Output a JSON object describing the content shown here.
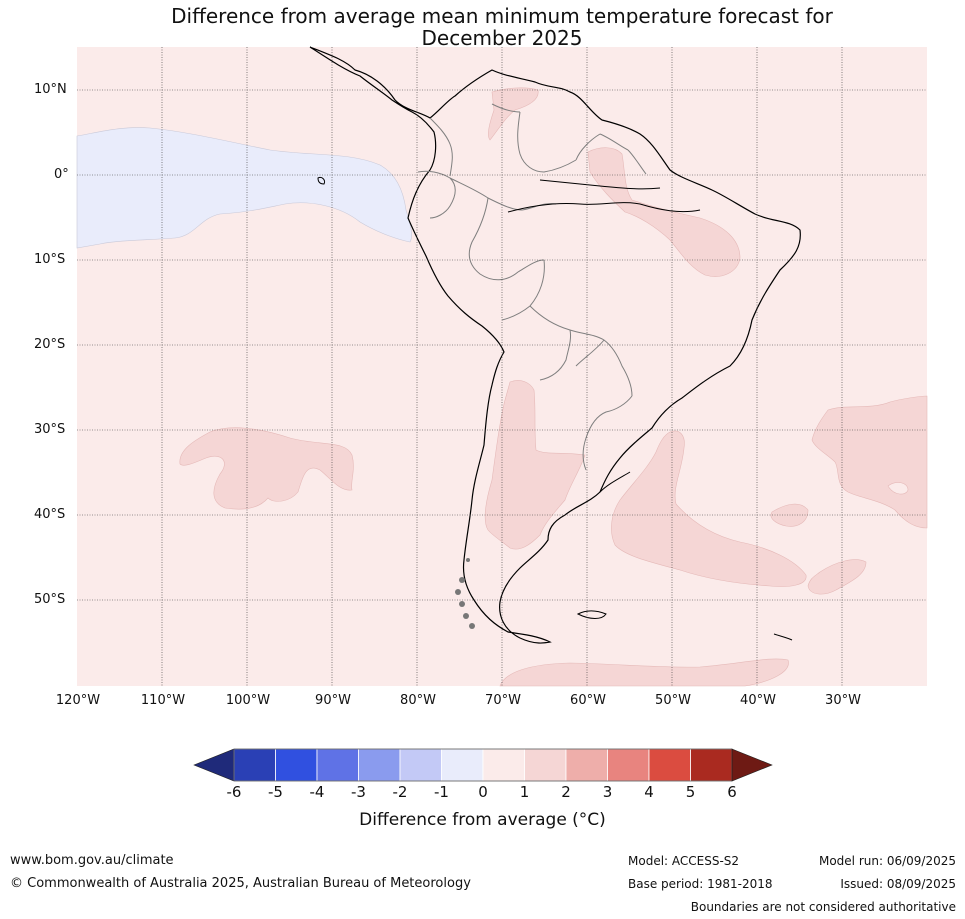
{
  "title": {
    "line1": "Difference from average mean minimum temperature forecast for",
    "line2": "December 2025"
  },
  "map": {
    "lat_labels": [
      "10°N",
      "0°",
      "10°S",
      "20°S",
      "30°S",
      "40°S",
      "50°S"
    ],
    "lon_labels": [
      "120°W",
      "110°W",
      "100°W",
      "90°W",
      "80°W",
      "70°W",
      "60°W",
      "50°W",
      "40°W",
      "30°W"
    ],
    "background_anomaly_range": "0 to 1",
    "colors": {
      "0to1": "#fbebea",
      "1to2": "#f5d6d5",
      "-1to0": "#e9ecfb",
      "land_outline": "#000000",
      "borders": "#808080",
      "grid": "#333333"
    }
  },
  "colorbar": {
    "tick_labels": [
      "-6",
      "-5",
      "-4",
      "-3",
      "-2",
      "-1",
      "0",
      "1",
      "2",
      "3",
      "4",
      "5",
      "6"
    ],
    "colors": [
      "#1f2a7a",
      "#2a40b5",
      "#3050e0",
      "#5f72e6",
      "#8a9bee",
      "#c3c9f6",
      "#e9ecfb",
      "#fbebea",
      "#f5d6d5",
      "#eeaeaa",
      "#e8847f",
      "#db4c40",
      "#aa2a20",
      "#6e1a14"
    ],
    "label": "Difference from average (°C)"
  },
  "footer": {
    "url": "www.bom.gov.au/climate",
    "copyright": "© Commonwealth of Australia 2025, Australian Bureau of Meteorology",
    "model": "Model: ACCESS-S2",
    "base_period": "Base period: 1981-2018",
    "model_run": "Model run: 06/09/2025",
    "issued": "Issued: 08/09/2025",
    "disclaimer": "Boundaries are not considered authoritative"
  }
}
